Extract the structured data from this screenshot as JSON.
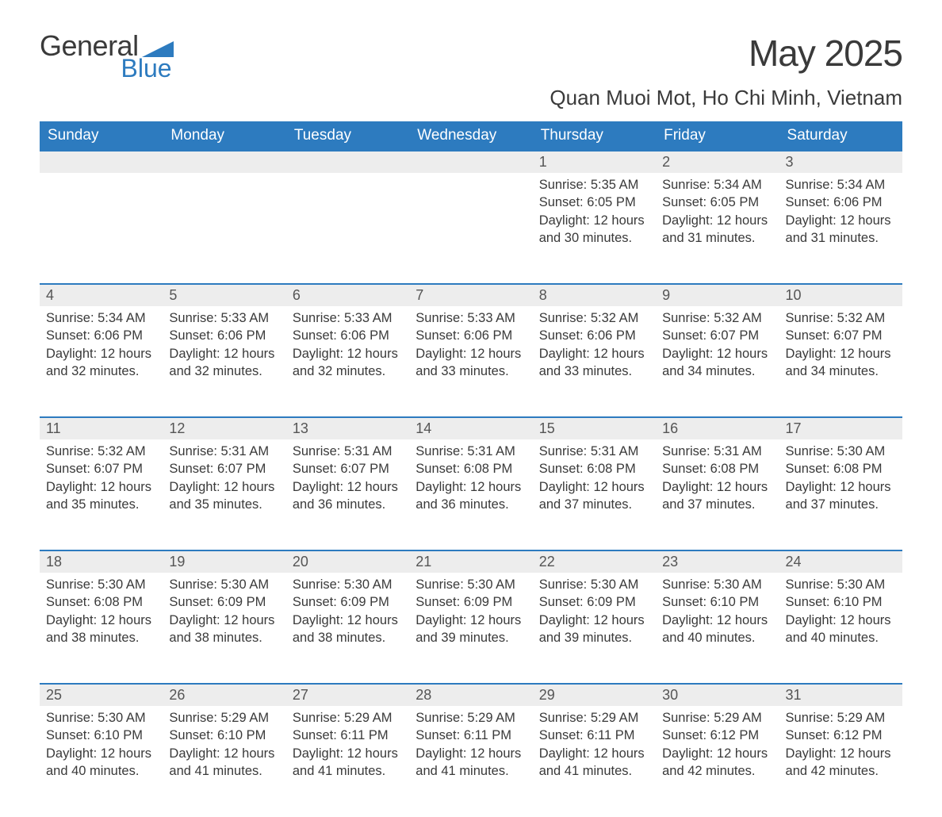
{
  "logo": {
    "word1": "General",
    "word2": "Blue"
  },
  "title": "May 2025",
  "location": "Quan Muoi Mot, Ho Chi Minh, Vietnam",
  "colors": {
    "header_bg": "#2d7bbf",
    "header_text": "#ffffff",
    "daynum_bg": "#ededed",
    "rule": "#2d7bbf",
    "body_text": "#3a3a3a",
    "logo_blue": "#2d7bbf"
  },
  "typography": {
    "title_fontsize": 46,
    "location_fontsize": 26,
    "dayheader_fontsize": 19,
    "daynum_fontsize": 18,
    "body_fontsize": 16.5,
    "font_family": "Arial"
  },
  "day_headers": [
    "Sunday",
    "Monday",
    "Tuesday",
    "Wednesday",
    "Thursday",
    "Friday",
    "Saturday"
  ],
  "weeks": [
    [
      null,
      null,
      null,
      null,
      {
        "n": "1",
        "sunrise": "5:35 AM",
        "sunset": "6:05 PM",
        "daylight": "12 hours and 30 minutes."
      },
      {
        "n": "2",
        "sunrise": "5:34 AM",
        "sunset": "6:05 PM",
        "daylight": "12 hours and 31 minutes."
      },
      {
        "n": "3",
        "sunrise": "5:34 AM",
        "sunset": "6:06 PM",
        "daylight": "12 hours and 31 minutes."
      }
    ],
    [
      {
        "n": "4",
        "sunrise": "5:34 AM",
        "sunset": "6:06 PM",
        "daylight": "12 hours and 32 minutes."
      },
      {
        "n": "5",
        "sunrise": "5:33 AM",
        "sunset": "6:06 PM",
        "daylight": "12 hours and 32 minutes."
      },
      {
        "n": "6",
        "sunrise": "5:33 AM",
        "sunset": "6:06 PM",
        "daylight": "12 hours and 32 minutes."
      },
      {
        "n": "7",
        "sunrise": "5:33 AM",
        "sunset": "6:06 PM",
        "daylight": "12 hours and 33 minutes."
      },
      {
        "n": "8",
        "sunrise": "5:32 AM",
        "sunset": "6:06 PM",
        "daylight": "12 hours and 33 minutes."
      },
      {
        "n": "9",
        "sunrise": "5:32 AM",
        "sunset": "6:07 PM",
        "daylight": "12 hours and 34 minutes."
      },
      {
        "n": "10",
        "sunrise": "5:32 AM",
        "sunset": "6:07 PM",
        "daylight": "12 hours and 34 minutes."
      }
    ],
    [
      {
        "n": "11",
        "sunrise": "5:32 AM",
        "sunset": "6:07 PM",
        "daylight": "12 hours and 35 minutes."
      },
      {
        "n": "12",
        "sunrise": "5:31 AM",
        "sunset": "6:07 PM",
        "daylight": "12 hours and 35 minutes."
      },
      {
        "n": "13",
        "sunrise": "5:31 AM",
        "sunset": "6:07 PM",
        "daylight": "12 hours and 36 minutes."
      },
      {
        "n": "14",
        "sunrise": "5:31 AM",
        "sunset": "6:08 PM",
        "daylight": "12 hours and 36 minutes."
      },
      {
        "n": "15",
        "sunrise": "5:31 AM",
        "sunset": "6:08 PM",
        "daylight": "12 hours and 37 minutes."
      },
      {
        "n": "16",
        "sunrise": "5:31 AM",
        "sunset": "6:08 PM",
        "daylight": "12 hours and 37 minutes."
      },
      {
        "n": "17",
        "sunrise": "5:30 AM",
        "sunset": "6:08 PM",
        "daylight": "12 hours and 37 minutes."
      }
    ],
    [
      {
        "n": "18",
        "sunrise": "5:30 AM",
        "sunset": "6:08 PM",
        "daylight": "12 hours and 38 minutes."
      },
      {
        "n": "19",
        "sunrise": "5:30 AM",
        "sunset": "6:09 PM",
        "daylight": "12 hours and 38 minutes."
      },
      {
        "n": "20",
        "sunrise": "5:30 AM",
        "sunset": "6:09 PM",
        "daylight": "12 hours and 38 minutes."
      },
      {
        "n": "21",
        "sunrise": "5:30 AM",
        "sunset": "6:09 PM",
        "daylight": "12 hours and 39 minutes."
      },
      {
        "n": "22",
        "sunrise": "5:30 AM",
        "sunset": "6:09 PM",
        "daylight": "12 hours and 39 minutes."
      },
      {
        "n": "23",
        "sunrise": "5:30 AM",
        "sunset": "6:10 PM",
        "daylight": "12 hours and 40 minutes."
      },
      {
        "n": "24",
        "sunrise": "5:30 AM",
        "sunset": "6:10 PM",
        "daylight": "12 hours and 40 minutes."
      }
    ],
    [
      {
        "n": "25",
        "sunrise": "5:30 AM",
        "sunset": "6:10 PM",
        "daylight": "12 hours and 40 minutes."
      },
      {
        "n": "26",
        "sunrise": "5:29 AM",
        "sunset": "6:10 PM",
        "daylight": "12 hours and 41 minutes."
      },
      {
        "n": "27",
        "sunrise": "5:29 AM",
        "sunset": "6:11 PM",
        "daylight": "12 hours and 41 minutes."
      },
      {
        "n": "28",
        "sunrise": "5:29 AM",
        "sunset": "6:11 PM",
        "daylight": "12 hours and 41 minutes."
      },
      {
        "n": "29",
        "sunrise": "5:29 AM",
        "sunset": "6:11 PM",
        "daylight": "12 hours and 41 minutes."
      },
      {
        "n": "30",
        "sunrise": "5:29 AM",
        "sunset": "6:12 PM",
        "daylight": "12 hours and 42 minutes."
      },
      {
        "n": "31",
        "sunrise": "5:29 AM",
        "sunset": "6:12 PM",
        "daylight": "12 hours and 42 minutes."
      }
    ]
  ],
  "labels": {
    "sunrise": "Sunrise: ",
    "sunset": "Sunset: ",
    "daylight": "Daylight: "
  }
}
